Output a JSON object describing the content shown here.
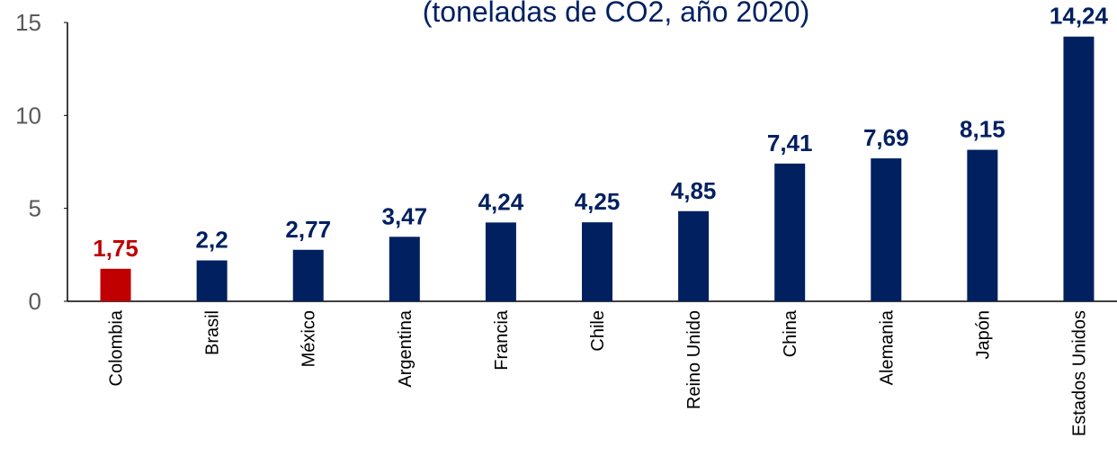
{
  "chart_data": {
    "type": "bar",
    "subtitle": "(toneladas de CO2, año 2020)",
    "categories": [
      "Colombia",
      "Brasil",
      "México",
      "Argentina",
      "Francia",
      "Chile",
      "Reino Unido",
      "China",
      "Alemania",
      "Japón",
      "Estados Unidos"
    ],
    "values": [
      1.75,
      2.2,
      2.77,
      3.47,
      4.24,
      4.25,
      4.85,
      7.41,
      7.69,
      8.15,
      14.24
    ],
    "value_labels": [
      "1,75",
      "2,2",
      "2,77",
      "3,47",
      "4,24",
      "4,25",
      "4,85",
      "7,41",
      "7,69",
      "8,15",
      "14,24"
    ],
    "colors": [
      "#c00000",
      "#002060",
      "#002060",
      "#002060",
      "#002060",
      "#002060",
      "#002060",
      "#002060",
      "#002060",
      "#002060",
      "#002060"
    ],
    "ylim": [
      0,
      15
    ],
    "yticks": [
      0,
      5,
      10,
      15
    ],
    "grid": false
  }
}
